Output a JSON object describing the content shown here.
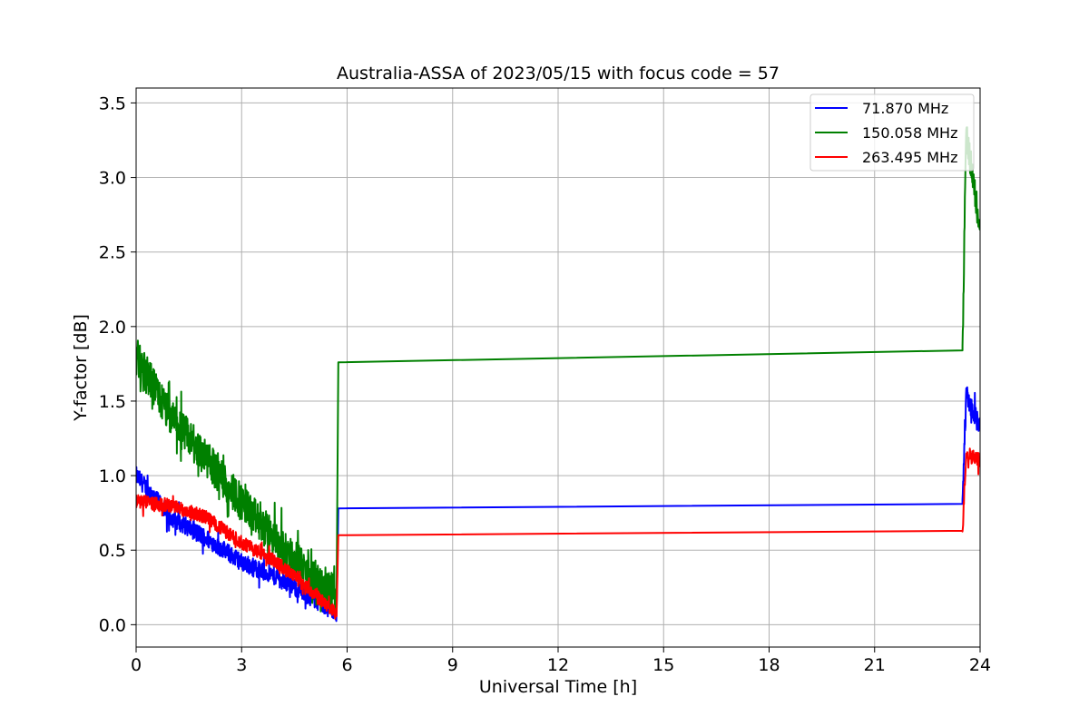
{
  "chart_data": {
    "type": "line",
    "title": "Australia-ASSA of 2023/05/15 with focus code = 57",
    "xlabel": "Universal Time [h]",
    "ylabel": "Y-factor [dB]",
    "xlim": [
      0,
      24
    ],
    "ylim": [
      -0.15,
      3.6
    ],
    "xticks": [
      0,
      3,
      6,
      9,
      12,
      15,
      18,
      21,
      24
    ],
    "yticks": [
      0.0,
      0.5,
      1.0,
      1.5,
      2.0,
      2.5,
      3.0,
      3.5
    ],
    "ytick_labels": [
      "0.0",
      "0.5",
      "1.0",
      "1.5",
      "2.0",
      "2.5",
      "3.0",
      "3.5"
    ],
    "grid": true,
    "legend_position": "top-right",
    "series": [
      {
        "name": "  71.870 MHz",
        "color": "#0000ff",
        "segments": [
          {
            "x": [
              0,
              1,
              2,
              3,
              4,
              5,
              5.7
            ],
            "y": [
              1.0,
              0.72,
              0.58,
              0.42,
              0.32,
              0.18,
              0.08
            ],
            "noise": 0.06
          },
          {
            "x": [
              5.7,
              5.75,
              23.5
            ],
            "y": [
              0.08,
              0.78,
              0.81
            ],
            "noise": 0
          },
          {
            "x": [
              23.5,
              23.6,
              24
            ],
            "y": [
              0.81,
              1.55,
              1.32
            ],
            "noise": 0.07
          }
        ]
      },
      {
        "name": "150.058 MHz",
        "color": "#008000",
        "segments": [
          {
            "x": [
              0,
              1,
              2,
              3,
              4,
              5,
              5.7
            ],
            "y": [
              1.8,
              1.38,
              1.12,
              0.82,
              0.55,
              0.32,
              0.2
            ],
            "noise": 0.13
          },
          {
            "x": [
              5.7,
              5.75,
              23.5
            ],
            "y": [
              0.2,
              1.76,
              1.84
            ],
            "noise": 0
          },
          {
            "x": [
              23.5,
              23.6,
              24
            ],
            "y": [
              1.84,
              3.32,
              2.65
            ],
            "noise": 0.1
          }
        ]
      },
      {
        "name": "263.495 MHz",
        "color": "#ff0000",
        "segments": [
          {
            "x": [
              0,
              1,
              2,
              3,
              4,
              5,
              5.7
            ],
            "y": [
              0.83,
              0.8,
              0.72,
              0.55,
              0.42,
              0.22,
              0.07
            ],
            "noise": 0.045
          },
          {
            "x": [
              5.7,
              5.75,
              23.5
            ],
            "y": [
              0.07,
              0.6,
              0.63
            ],
            "noise": 0
          },
          {
            "x": [
              23.5,
              23.6,
              24
            ],
            "y": [
              0.63,
              1.15,
              1.1
            ],
            "noise": 0.05
          }
        ]
      }
    ]
  }
}
